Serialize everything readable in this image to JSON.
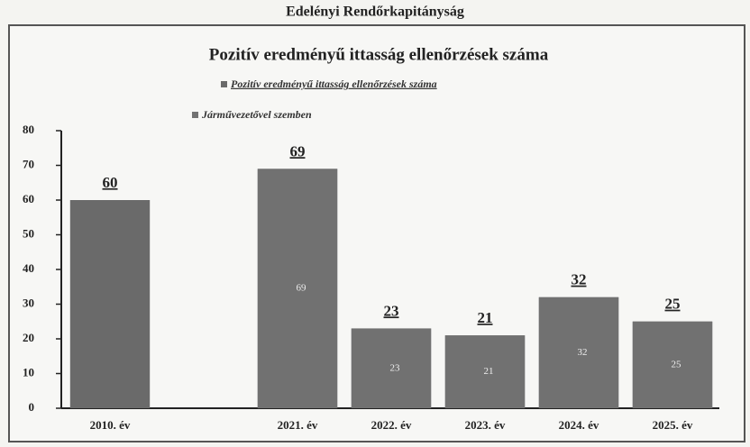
{
  "chart_data": {
    "type": "bar",
    "header": "Edelényi Rendőrkapitányság",
    "title": "Pozitív eredményű ittasság ellenőrzések száma",
    "categories": [
      "2010. év",
      null,
      "2021. év",
      "2022. év",
      "2023. év",
      "2024. év",
      "2025. év"
    ],
    "series": [
      {
        "name": "Pozitív eredményű ittasság ellenőrzések száma",
        "color": "#6a6a6a",
        "values": [
          60,
          null,
          69,
          23,
          21,
          32,
          25
        ]
      },
      {
        "name": "Járművezetővel szemben",
        "color": "#727272",
        "values": [
          null,
          null,
          69,
          23,
          21,
          32,
          25
        ]
      }
    ],
    "ylim": [
      0,
      80
    ],
    "yticks": [
      0,
      10,
      20,
      30,
      40,
      50,
      60,
      70,
      80
    ]
  }
}
